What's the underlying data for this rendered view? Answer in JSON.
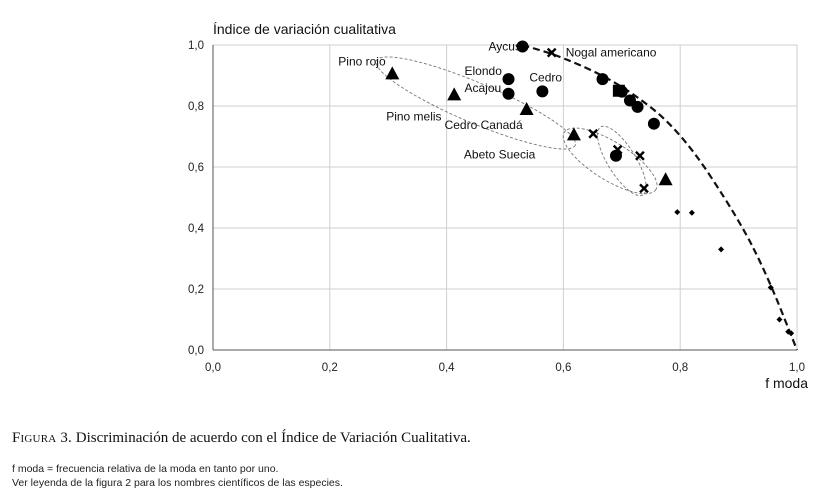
{
  "chart_data": {
    "type": "scatter",
    "ylabel": "Índice de variación cualitativa",
    "xlabel": "f moda",
    "xlim": [
      0,
      1
    ],
    "ylim": [
      0,
      1
    ],
    "x_ticks": [
      0,
      0.2,
      0.4,
      0.6,
      0.8,
      1.0
    ],
    "y_ticks": [
      0,
      0.2,
      0.4,
      0.6,
      0.8,
      1.0
    ],
    "x_tick_labels": [
      "0,0",
      "0,2",
      "0,4",
      "0,6",
      "0,8",
      "1,0"
    ],
    "y_tick_labels": [
      "0,0",
      "0,2",
      "0,4",
      "0,6",
      "0,8",
      "1,0"
    ],
    "grid": true,
    "series": [
      {
        "name": "circles",
        "marker": "circle",
        "points": [
          [
            0.53,
            0.995
          ],
          [
            0.506,
            0.888
          ],
          [
            0.506,
            0.84
          ],
          [
            0.564,
            0.848
          ],
          [
            0.667,
            0.888
          ],
          [
            0.7,
            0.847
          ],
          [
            0.714,
            0.818
          ],
          [
            0.727,
            0.797
          ],
          [
            0.755,
            0.742
          ],
          [
            0.69,
            0.637
          ]
        ]
      },
      {
        "name": "triangles",
        "marker": "triangle",
        "points": [
          [
            0.307,
            0.907
          ],
          [
            0.413,
            0.838
          ],
          [
            0.537,
            0.79
          ],
          [
            0.618,
            0.707
          ],
          [
            0.775,
            0.56
          ]
        ]
      },
      {
        "name": "crosses",
        "marker": "cross",
        "points": [
          [
            0.58,
            0.975
          ],
          [
            0.651,
            0.709
          ],
          [
            0.693,
            0.657
          ],
          [
            0.731,
            0.637
          ],
          [
            0.738,
            0.53
          ]
        ]
      },
      {
        "name": "squares",
        "marker": "square",
        "points": [
          [
            0.695,
            0.85
          ]
        ]
      },
      {
        "name": "diamonds",
        "marker": "diamond",
        "points": [
          [
            0.795,
            0.452
          ],
          [
            0.82,
            0.45
          ],
          [
            0.87,
            0.33
          ],
          [
            0.955,
            0.205
          ],
          [
            0.97,
            0.1
          ],
          [
            0.985,
            0.06
          ],
          [
            0.99,
            0.055
          ]
        ]
      }
    ],
    "theoretical_curve": [
      [
        0.53,
        1.0
      ],
      [
        0.6,
        0.96
      ],
      [
        0.7,
        0.87
      ],
      [
        0.8,
        0.72
      ],
      [
        0.9,
        0.43
      ],
      [
        0.95,
        0.24
      ],
      [
        1.0,
        0.0
      ]
    ],
    "annotations": [
      {
        "text": "Aycus",
        "x": 0.53,
        "y": 0.995
      },
      {
        "text": "Nogal americano",
        "x": 0.58,
        "y": 0.975
      },
      {
        "text": "Pino rojo",
        "x": 0.307,
        "y": 0.907
      },
      {
        "text": "Elondo",
        "x": 0.506,
        "y": 0.888
      },
      {
        "text": "Cedro",
        "x": 0.564,
        "y": 0.848
      },
      {
        "text": "Acajou",
        "x": 0.506,
        "y": 0.84
      },
      {
        "text": "Pino melis",
        "x": 0.413,
        "y": 0.838
      },
      {
        "text": "Cedro Canadá",
        "x": 0.537,
        "y": 0.79
      },
      {
        "text": "Abeto Suecia",
        "x": 0.618,
        "y": 0.707
      }
    ]
  },
  "caption": {
    "label": "Figura 3.",
    "text": "Discriminación de acuerdo con el Índice de Variación Cualitativa."
  },
  "notes": [
    "f moda = frecuencia relativa de la moda en tanto por uno.",
    "Ver leyenda de la figura 2 para los nombres científicos de las especies."
  ]
}
